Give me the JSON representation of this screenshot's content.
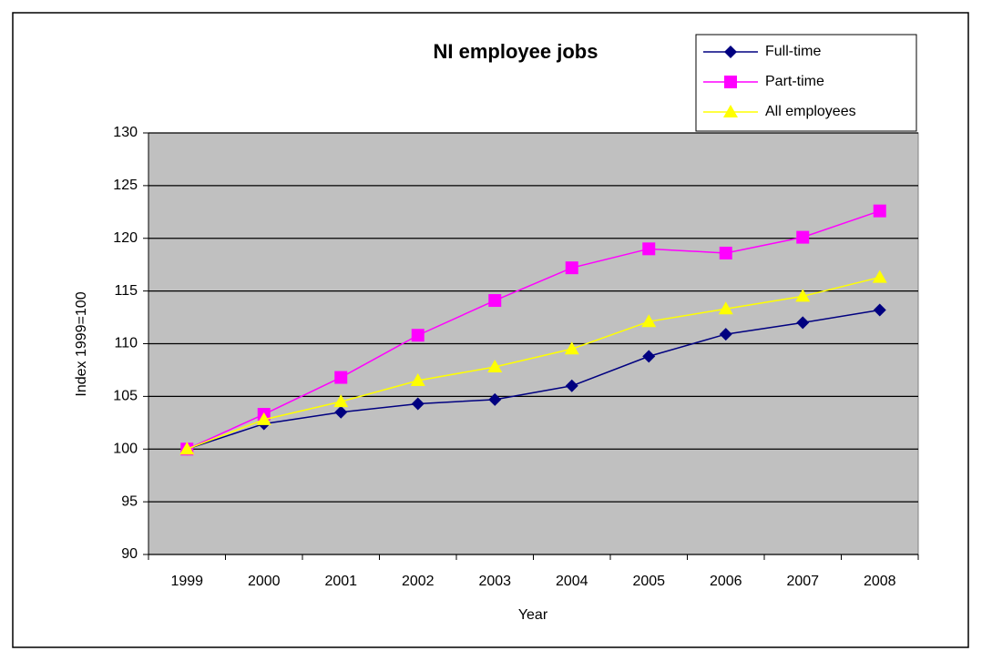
{
  "chart_data": {
    "type": "line",
    "title": "NI employee jobs",
    "x_label": "Year",
    "y_label": "Index 1999=100",
    "categories": [
      "1999",
      "2000",
      "2001",
      "2002",
      "2003",
      "2004",
      "2005",
      "2006",
      "2007",
      "2008"
    ],
    "series": [
      {
        "name": "Full-time",
        "color": "#000080",
        "marker": "diamond",
        "values": [
          100,
          102.4,
          103.5,
          104.3,
          104.7,
          106.0,
          108.8,
          110.9,
          112.0,
          113.2
        ]
      },
      {
        "name": "Part-time",
        "color": "#ff00ff",
        "marker": "square",
        "values": [
          100,
          103.3,
          106.8,
          110.8,
          114.1,
          117.2,
          119.0,
          118.6,
          120.1,
          122.6
        ]
      },
      {
        "name": "All employees",
        "color": "#ffff00",
        "marker": "triangle",
        "values": [
          100,
          102.8,
          104.5,
          106.5,
          107.8,
          109.5,
          112.1,
          113.3,
          114.5,
          116.3
        ]
      }
    ],
    "ylim": [
      90,
      130
    ],
    "yticks": [
      90,
      95,
      100,
      105,
      110,
      115,
      120,
      125,
      130
    ],
    "grid": true,
    "legend": "top-right",
    "plot_background": "#c0c0c0"
  }
}
